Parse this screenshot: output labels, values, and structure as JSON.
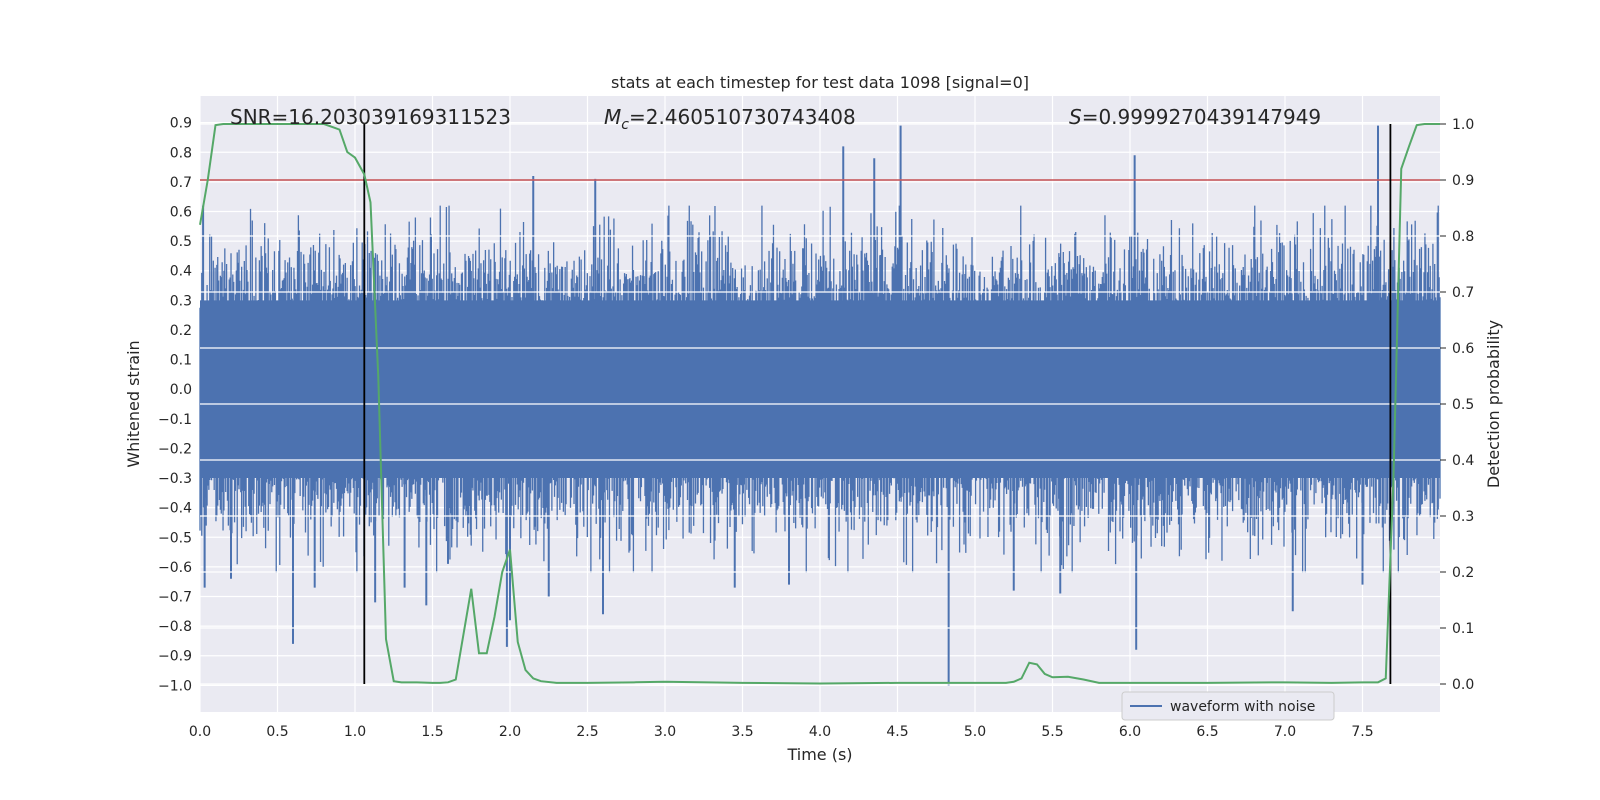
{
  "chart_data": {
    "type": "line",
    "title": "stats at each timestep for test data 1098 [signal=0]",
    "xlabel": "Time (s)",
    "ylabel_left": "Whitened strain",
    "ylabel_right": "Detection probability",
    "xlim": [
      0.0,
      8.0
    ],
    "ylim_left": [
      -1.09,
      0.99
    ],
    "ylim_right": [
      -0.05,
      1.05
    ],
    "x_ticks": [
      0.0,
      0.5,
      1.0,
      1.5,
      2.0,
      2.5,
      3.0,
      3.5,
      4.0,
      4.5,
      5.0,
      5.5,
      6.0,
      6.5,
      7.0,
      7.5
    ],
    "x_tick_labels": [
      "0.0",
      "0.5",
      "1.0",
      "1.5",
      "2.0",
      "2.5",
      "3.0",
      "3.5",
      "4.0",
      "4.5",
      "5.0",
      "5.5",
      "6.0",
      "6.5",
      "7.0",
      "7.5"
    ],
    "y_left_ticks": [
      0.9,
      0.8,
      0.7,
      0.6,
      0.5,
      0.4,
      0.3,
      0.2,
      0.1,
      0.0,
      -0.1,
      -0.2,
      -0.3,
      -0.4,
      -0.5,
      -0.6,
      -0.7,
      -0.8,
      -0.9,
      -1.0
    ],
    "y_left_tick_labels": [
      "0.9",
      "0.8",
      "0.7",
      "0.6",
      "0.5",
      "0.4",
      "0.3",
      "0.2",
      "0.1",
      "0.0",
      "−0.1",
      "−0.2",
      "−0.3",
      "−0.4",
      "−0.5",
      "−0.6",
      "−0.7",
      "−0.8",
      "−0.9",
      "−1.0"
    ],
    "y_right_ticks": [
      1.0,
      0.9,
      0.8,
      0.7,
      0.6,
      0.5,
      0.4,
      0.3,
      0.2,
      0.1,
      0.0
    ],
    "y_right_tick_labels": [
      "1.0",
      "0.9",
      "0.8",
      "0.7",
      "0.6",
      "0.5",
      "0.4",
      "0.3",
      "0.2",
      "0.1",
      "0.0"
    ],
    "annotations": {
      "snr": "SNR=16.203039169311523",
      "mc_symbol": "M",
      "mc_sub": "c",
      "mc_value": "=2.460510730743408",
      "s_symbol": "S",
      "s_value": "=0.9999270439147949"
    },
    "legend": {
      "label": "waveform with noise",
      "placement": "lower-right"
    },
    "threshold": {
      "y_right": 0.9,
      "color": "#c44e52"
    },
    "vertical_lines": [
      1.06,
      7.68
    ],
    "series": [
      {
        "name": "waveform with noise",
        "axis": "left",
        "color": "#4c72b0",
        "style": "dense-noise",
        "envelope_typical": 0.4,
        "sample_count": 1400,
        "spikes": [
          {
            "x": 0.02,
            "y": 0.62
          },
          {
            "x": 0.03,
            "y": -0.67
          },
          {
            "x": 0.2,
            "y": -0.64
          },
          {
            "x": 0.6,
            "y": -0.86
          },
          {
            "x": 0.74,
            "y": -0.67
          },
          {
            "x": 1.13,
            "y": -0.72
          },
          {
            "x": 1.32,
            "y": -0.67
          },
          {
            "x": 1.46,
            "y": -0.73
          },
          {
            "x": 1.6,
            "y": -0.59
          },
          {
            "x": 1.98,
            "y": -0.87
          },
          {
            "x": 2.0,
            "y": -0.78
          },
          {
            "x": 2.15,
            "y": 0.72
          },
          {
            "x": 2.55,
            "y": 0.71
          },
          {
            "x": 2.6,
            "y": -0.76
          },
          {
            "x": 2.25,
            "y": -0.7
          },
          {
            "x": 3.45,
            "y": -0.67
          },
          {
            "x": 4.15,
            "y": 0.82
          },
          {
            "x": 4.35,
            "y": 0.78
          },
          {
            "x": 4.52,
            "y": 0.89
          },
          {
            "x": 4.83,
            "y": -1.0
          },
          {
            "x": 5.55,
            "y": -0.69
          },
          {
            "x": 6.03,
            "y": 0.79
          },
          {
            "x": 6.04,
            "y": -0.88
          },
          {
            "x": 7.05,
            "y": -0.75
          },
          {
            "x": 7.5,
            "y": -0.66
          },
          {
            "x": 7.6,
            "y": 0.89
          },
          {
            "x": 3.8,
            "y": -0.66
          },
          {
            "x": 5.25,
            "y": -0.68
          }
        ]
      },
      {
        "name": "detection probability",
        "axis": "right",
        "color": "#55a868",
        "x": [
          0.0,
          0.05,
          0.1,
          0.15,
          0.2,
          0.3,
          0.4,
          0.5,
          0.6,
          0.7,
          0.8,
          0.9,
          0.95,
          1.0,
          1.06,
          1.1,
          1.15,
          1.2,
          1.25,
          1.3,
          1.35,
          1.4,
          1.5,
          1.55,
          1.6,
          1.65,
          1.75,
          1.8,
          1.85,
          1.9,
          1.95,
          2.0,
          2.05,
          2.1,
          2.15,
          2.2,
          2.3,
          2.5,
          2.8,
          3.0,
          3.5,
          4.0,
          4.5,
          4.8,
          5.0,
          5.1,
          5.2,
          5.25,
          5.3,
          5.35,
          5.4,
          5.45,
          5.5,
          5.6,
          5.7,
          5.8,
          6.0,
          6.5,
          7.0,
          7.3,
          7.5,
          7.6,
          7.65,
          7.7,
          7.75,
          7.8,
          7.85,
          7.9,
          7.95,
          8.0
        ],
        "y": [
          0.82,
          0.9,
          0.998,
          1.0,
          1.0,
          1.0,
          1.0,
          1.0,
          1.0,
          1.0,
          1.0,
          0.99,
          0.95,
          0.94,
          0.91,
          0.86,
          0.55,
          0.08,
          0.005,
          0.003,
          0.003,
          0.003,
          0.002,
          0.002,
          0.003,
          0.008,
          0.17,
          0.055,
          0.055,
          0.12,
          0.2,
          0.24,
          0.075,
          0.025,
          0.01,
          0.005,
          0.002,
          0.002,
          0.003,
          0.004,
          0.002,
          0.001,
          0.002,
          0.002,
          0.002,
          0.002,
          0.002,
          0.004,
          0.01,
          0.038,
          0.035,
          0.018,
          0.012,
          0.013,
          0.008,
          0.002,
          0.002,
          0.002,
          0.003,
          0.002,
          0.003,
          0.003,
          0.01,
          0.37,
          0.92,
          0.96,
          0.998,
          1.0,
          1.0,
          1.0
        ]
      }
    ]
  }
}
